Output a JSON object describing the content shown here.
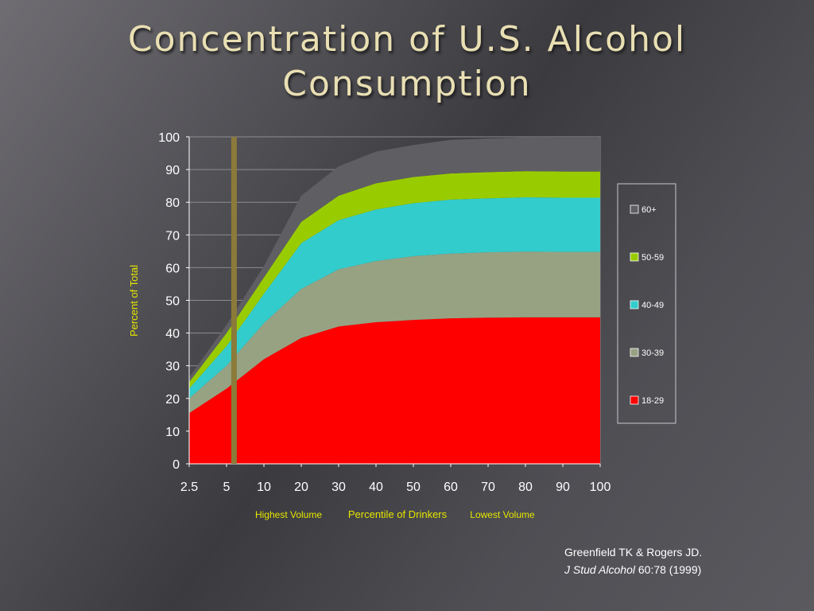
{
  "title_line1": "Concentration of U.S. Alcohol",
  "title_line2": "Consumption",
  "citation": {
    "authors": "Greenfield TK & Rogers JD.",
    "journal": "J Stud Alcohol",
    "volume": "60:78 (1999)"
  },
  "chart_data": {
    "type": "area",
    "stacked": true,
    "x": [
      "2.5",
      "5",
      "10",
      "20",
      "30",
      "40",
      "50",
      "60",
      "70",
      "80",
      "90",
      "100"
    ],
    "ylabel": "Percent of Total",
    "xlabel": "Percentile of Drinkers",
    "xlabel_left": "Highest Volume",
    "xlabel_right": "Lowest Volume",
    "ylim": [
      0,
      100
    ],
    "yticks": [
      0,
      10,
      20,
      30,
      40,
      50,
      60,
      70,
      80,
      90,
      100
    ],
    "grid": true,
    "legend_position": "right",
    "marker_line_x": 5.5,
    "colors": {
      "18-29": "#ff0000",
      "30-39": "#97a282",
      "40-49": "#33cccc",
      "50-59": "#99cc00",
      "60+": "#5f5e63",
      "marker": "#8b7a3a",
      "axis_text": "#ffffff",
      "label_text": "#e6e600"
    },
    "series": [
      {
        "name": "18-29",
        "values": [
          15.5,
          23,
          32,
          38.5,
          42,
          43.3,
          44,
          44.5,
          44.7,
          44.8,
          44.8,
          44.8
        ]
      },
      {
        "name": "30-39",
        "values": [
          4.5,
          7,
          11,
          15,
          17.5,
          18.7,
          19.5,
          19.8,
          20,
          20.1,
          20,
          20
        ]
      },
      {
        "name": "40-49",
        "values": [
          3,
          6,
          9,
          14,
          15,
          15.8,
          16.2,
          16.5,
          16.5,
          16.6,
          16.6,
          16.6
        ]
      },
      {
        "name": "50-59",
        "values": [
          2,
          4,
          5,
          6.5,
          7.5,
          8,
          8,
          8,
          8,
          8,
          8,
          8
        ]
      },
      {
        "name": "60+",
        "values": [
          1.5,
          2.5,
          3.5,
          8,
          9,
          9.7,
          9.8,
          10.3,
          10.3,
          10.3,
          10.3,
          10.3
        ]
      }
    ]
  }
}
